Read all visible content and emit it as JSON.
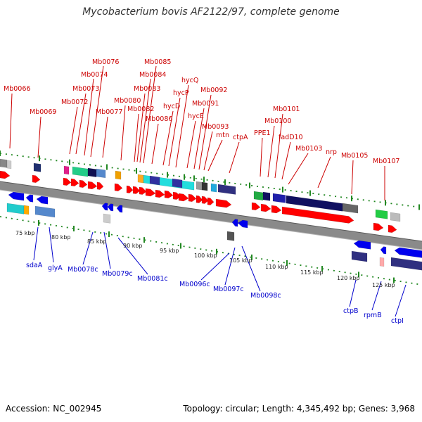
{
  "title": "Mycobacterium bovis AF2122/97, complete genome",
  "footer": {
    "accession": "Accession: NC_002945",
    "summary": "Topology: circular; Length: 4,345,492 bp; Genes: 3,968"
  },
  "colors": {
    "forward_label": "#cc0000",
    "reverse_label": "#0000cc",
    "forward_gene": "#ff0000",
    "reverse_gene": "#0000ee",
    "backbone": "#888888",
    "tick": "#228822"
  },
  "forward_labels": [
    "Mb0066",
    "Mb0069",
    "Mb0072",
    "Mb0073",
    "Mb0074",
    "Mb0076",
    "Mb0077",
    "Mb0080",
    "Mb0082",
    "Mb0083",
    "Mb0084",
    "Mb0085",
    "Mb0086",
    "hycD",
    "hycP",
    "hycQ",
    "hycE",
    "Mb0091",
    "Mb0092",
    "Mb0093",
    "mtn",
    "ctpA",
    "PPE1",
    "Mb0100",
    "Mb0101",
    "fadD10",
    "Mb0103",
    "nrp",
    "Mb0105",
    "Mb0107"
  ],
  "reverse_labels": [
    "sdaA",
    "glyA",
    "Mb0078c",
    "Mb0079c",
    "Mb0081c",
    "Mb0096c",
    "Mb0097c",
    "Mb0098c",
    "ctpB",
    "rpmB",
    "ctpI"
  ],
  "ticks": [
    "75 kbp",
    "80 kbp",
    "85 kbp",
    "90 kbp",
    "95 kbp",
    "100 kbp",
    "105 kbp",
    "110 kbp",
    "115 kbp",
    "120 kbp",
    "125 kbp"
  ]
}
